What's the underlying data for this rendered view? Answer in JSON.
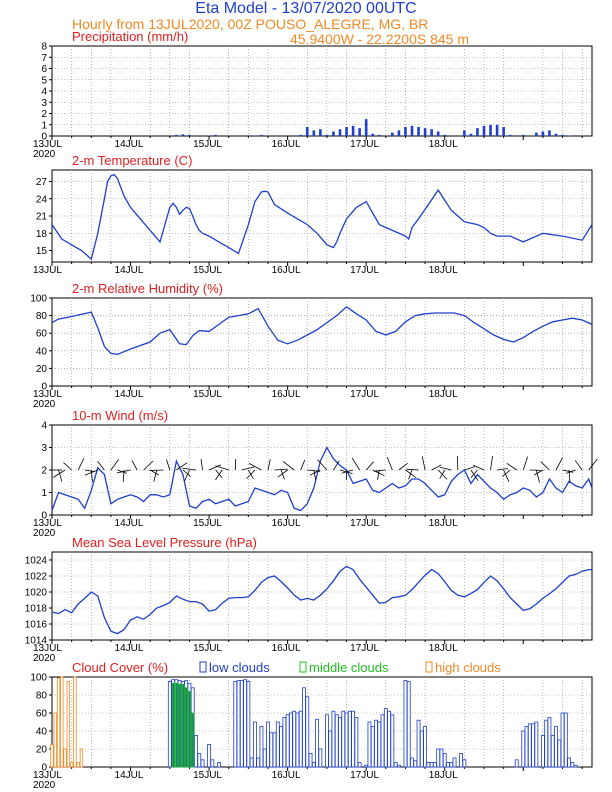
{
  "header": {
    "title": "Eta Model - 13/07/2020 00UTC",
    "subtitle": "Hourly from 13JUL2020, 00Z  POUSO_ALEGRE, MG, BR",
    "coords": "45.9400W - 22.2200S     845  m"
  },
  "colors": {
    "blue": "#1f3fcc",
    "red": "#e02020",
    "orange": "#f08a24",
    "green": "#20c020",
    "teal": "#1f7a7a"
  },
  "chart_data": [
    {
      "type": "bar",
      "title": "Precipitation (mm/h)",
      "ylim": [
        0,
        8
      ],
      "yticks": [
        0,
        1,
        2,
        3,
        4,
        5,
        6,
        7,
        8
      ],
      "xticks": [
        "13JUL",
        "14JUL",
        "15JUL",
        "16JUL",
        "17JUL",
        "18JUL"
      ],
      "year_label": "2020",
      "x_hours": [
        38,
        40,
        42,
        48,
        50,
        62,
        64,
        76,
        78,
        80,
        82,
        84,
        86,
        88,
        90,
        92,
        94,
        96,
        98,
        100,
        104,
        106,
        108,
        110,
        112,
        114,
        116,
        118,
        120,
        126,
        128,
        130,
        132,
        134,
        136,
        138,
        140,
        144,
        148,
        150,
        152,
        154,
        156,
        158
      ],
      "values": [
        0.1,
        0.15,
        0.1,
        0.05,
        0.1,
        0.05,
        0.1,
        0.1,
        0.8,
        0.5,
        0.6,
        0.1,
        0.4,
        0.6,
        0.8,
        0.9,
        0.7,
        1.5,
        0.2,
        0.1,
        0.3,
        0.5,
        0.8,
        0.9,
        0.8,
        0.7,
        0.6,
        0.4,
        0.1,
        0.5,
        0.2,
        0.7,
        0.9,
        1.0,
        1.0,
        0.8,
        0.1,
        0.1,
        0.3,
        0.4,
        0.5,
        0.2,
        0.1,
        0.05
      ]
    },
    {
      "type": "line",
      "title": "2-m Temperature (C)",
      "ylim": [
        13,
        29
      ],
      "yticks": [
        15,
        18,
        21,
        24,
        27
      ],
      "xticks": [
        "13JUL",
        "14JUL",
        "15JUL",
        "16JUL",
        "17JUL",
        "18JUL"
      ],
      "x_hours": [
        0,
        3,
        6,
        9,
        12,
        14,
        16,
        17,
        18,
        19,
        20,
        22,
        24,
        27,
        30,
        33,
        36,
        37,
        38,
        39,
        40,
        41,
        42,
        43,
        44,
        45,
        46,
        48,
        51,
        54,
        57,
        60,
        62,
        64,
        65,
        66,
        68,
        72,
        75,
        78,
        81,
        84,
        86,
        87,
        88,
        90,
        93,
        96,
        100,
        104,
        108,
        109,
        110,
        112,
        115,
        118,
        122,
        126,
        130,
        132,
        133,
        134,
        136,
        140,
        144,
        150,
        156,
        162,
        165
      ],
      "values": [
        19.5,
        17,
        16,
        15,
        13.5,
        18,
        24,
        27,
        28,
        28.2,
        27.5,
        24.5,
        22.5,
        20.5,
        18.5,
        16.5,
        22.5,
        23.2,
        22.5,
        21.3,
        22.0,
        22.5,
        22.3,
        21.0,
        19.5,
        18.5,
        18.0,
        17.5,
        16.5,
        15.5,
        14.5,
        19.5,
        23.5,
        25.2,
        25.3,
        25.2,
        23.0,
        21.5,
        20.5,
        19.5,
        18.0,
        16.0,
        15.5,
        16.5,
        18.0,
        20.5,
        22.5,
        23.5,
        19.5,
        18.5,
        17.5,
        17.0,
        19.0,
        20.5,
        23.0,
        25.5,
        22.0,
        20.0,
        19.5,
        19.0,
        18.5,
        18.0,
        17.5,
        17.5,
        16.5,
        18,
        17.5,
        16.8,
        19.5
      ]
    },
    {
      "type": "line",
      "title": "2-m Relative Humidity (%)",
      "ylim": [
        0,
        100
      ],
      "yticks": [
        0,
        20,
        40,
        60,
        80,
        100
      ],
      "xticks": [
        "13JUL",
        "14JUL",
        "15JUL",
        "16JUL",
        "17JUL",
        "18JUL"
      ],
      "year_label": "2020",
      "x_hours": [
        0,
        2,
        6,
        12,
        14,
        16,
        18,
        20,
        24,
        30,
        33,
        36,
        39,
        41,
        43,
        45,
        48,
        51,
        54,
        57,
        60,
        63,
        66,
        69,
        72,
        75,
        78,
        81,
        84,
        87,
        90,
        93,
        96,
        99,
        102,
        105,
        108,
        111,
        114,
        117,
        120,
        123,
        126,
        129,
        132,
        135,
        138,
        141,
        144,
        147,
        150,
        153,
        156,
        159,
        162,
        165
      ],
      "values": [
        72,
        76,
        79,
        84,
        66,
        45,
        37,
        36,
        42,
        50,
        60,
        64,
        48,
        47,
        57,
        63,
        62,
        70,
        78,
        80,
        82,
        88,
        68,
        52,
        48,
        52,
        58,
        64,
        72,
        80,
        90,
        82,
        75,
        62,
        58,
        62,
        73,
        80,
        82,
        83,
        83,
        83,
        80,
        72,
        65,
        58,
        53,
        50,
        55,
        62,
        68,
        73,
        75,
        77,
        75,
        70
      ]
    },
    {
      "type": "line",
      "title": "10-m Wind (m/s)",
      "ylim": [
        0,
        4
      ],
      "yticks": [
        0,
        1,
        2,
        3,
        4
      ],
      "xticks": [
        "13JUL",
        "14JUL",
        "15JUL",
        "16JUL",
        "17JUL",
        "18JUL"
      ],
      "year_label": "2020",
      "series_note": "wind barbs drawn along the 2 m/s line",
      "x_hours": [
        0,
        2,
        4,
        6,
        8,
        10,
        12,
        14,
        16,
        18,
        20,
        22,
        24,
        26,
        28,
        30,
        32,
        34,
        36,
        38,
        40,
        42,
        44,
        46,
        48,
        50,
        52,
        54,
        56,
        58,
        60,
        62,
        64,
        66,
        68,
        70,
        72,
        74,
        76,
        78,
        80,
        82,
        84,
        86,
        88,
        90,
        92,
        94,
        96,
        98,
        100,
        102,
        104,
        106,
        108,
        110,
        112,
        114,
        116,
        118,
        120,
        122,
        124,
        126,
        128,
        130,
        132,
        134,
        136,
        138,
        140,
        142,
        144,
        146,
        148,
        150,
        152,
        154,
        156,
        158,
        160,
        162,
        164,
        165
      ],
      "values": [
        0.2,
        1.0,
        0.9,
        0.8,
        0.7,
        0.3,
        1.1,
        2.1,
        1.8,
        0.5,
        0.7,
        0.8,
        0.9,
        0.8,
        0.6,
        0.9,
        0.9,
        0.8,
        0.9,
        2.4,
        1.8,
        0.4,
        0.3,
        0.6,
        0.7,
        0.5,
        0.6,
        0.7,
        0.4,
        0.5,
        0.6,
        1.2,
        1.1,
        1.0,
        0.9,
        1.1,
        1.0,
        0.3,
        0.2,
        0.5,
        1.2,
        2.4,
        3.0,
        2.5,
        2.2,
        2.0,
        1.4,
        1.5,
        1.6,
        1.1,
        1.0,
        1.2,
        1.4,
        1.2,
        1.3,
        1.6,
        1.6,
        1.4,
        1.1,
        0.8,
        0.9,
        1.5,
        1.8,
        2.0,
        1.4,
        1.8,
        1.5,
        1.2,
        1.0,
        0.7,
        0.9,
        1.0,
        1.2,
        1.1,
        0.8,
        1.0,
        1.6,
        1.2,
        1.0,
        1.5,
        1.3,
        1.2,
        1.6,
        1.2
      ]
    },
    {
      "type": "line",
      "title": "Mean Sea Level Pressure (hPa)",
      "ylim": [
        1014,
        1025
      ],
      "yticks": [
        1014,
        1016,
        1018,
        1020,
        1022,
        1024
      ],
      "xticks": [
        "13JUL",
        "14JUL",
        "15JUL",
        "16JUL",
        "17JUL",
        "18JUL"
      ],
      "year_label": "2020",
      "x_hours": [
        0,
        2,
        4,
        6,
        8,
        10,
        12,
        14,
        16,
        18,
        20,
        22,
        24,
        26,
        28,
        30,
        32,
        34,
        36,
        38,
        40,
        42,
        44,
        46,
        48,
        50,
        52,
        54,
        56,
        58,
        60,
        62,
        64,
        66,
        68,
        70,
        72,
        74,
        76,
        78,
        80,
        82,
        84,
        86,
        88,
        90,
        92,
        94,
        96,
        98,
        100,
        102,
        104,
        106,
        108,
        110,
        112,
        114,
        116,
        118,
        120,
        122,
        124,
        126,
        128,
        130,
        132,
        134,
        136,
        138,
        140,
        142,
        144,
        146,
        148,
        150,
        152,
        154,
        156,
        158,
        160,
        162,
        164,
        165
      ],
      "values": [
        1017.5,
        1017.3,
        1017.8,
        1017.4,
        1018.5,
        1019.2,
        1020.0,
        1019.5,
        1016.8,
        1015.1,
        1014.8,
        1015.3,
        1016.5,
        1016.9,
        1016.6,
        1017.2,
        1018.0,
        1018.3,
        1018.7,
        1019.5,
        1019.1,
        1018.8,
        1018.8,
        1018.5,
        1017.6,
        1017.8,
        1018.6,
        1019.2,
        1019.3,
        1019.3,
        1019.4,
        1020.2,
        1021.2,
        1021.8,
        1022.0,
        1021.3,
        1020.5,
        1019.6,
        1019.0,
        1019.2,
        1019.0,
        1019.6,
        1020.4,
        1021.4,
        1022.6,
        1023.2,
        1022.8,
        1021.6,
        1020.6,
        1019.6,
        1018.6,
        1018.7,
        1019.3,
        1019.4,
        1019.6,
        1020.3,
        1021.2,
        1022.1,
        1022.8,
        1022.3,
        1021.3,
        1020.2,
        1019.6,
        1019.4,
        1019.8,
        1020.3,
        1021.2,
        1022.0,
        1021.4,
        1020.4,
        1019.3,
        1018.5,
        1017.7,
        1017.9,
        1018.5,
        1019.2,
        1019.8,
        1020.4,
        1021.2,
        1022.0,
        1022.2,
        1022.6,
        1022.8,
        1022.8
      ]
    },
    {
      "type": "bar",
      "title": "Cloud Cover (%)",
      "ylim": [
        0,
        100
      ],
      "yticks": [
        0,
        20,
        40,
        60,
        80,
        100
      ],
      "xticks": [
        "13JUL",
        "14JUL",
        "15JUL",
        "16JUL",
        "17JUL",
        "18JUL"
      ],
      "year_label": "2020",
      "legend": [
        {
          "label": "low clouds",
          "color": "#1f3fcc"
        },
        {
          "label": "middle clouds",
          "color": "#20c020"
        },
        {
          "label": "high clouds",
          "color": "#f08a24"
        }
      ],
      "series": [
        {
          "name": "low clouds",
          "x_hours": [
            36,
            37,
            38,
            39,
            40,
            41,
            42,
            43,
            44,
            45,
            46,
            48,
            49,
            51,
            56,
            57,
            58,
            59,
            60,
            61,
            62,
            63,
            64,
            65,
            66,
            67,
            68,
            69,
            70,
            71,
            72,
            73,
            74,
            75,
            76,
            77,
            78,
            79,
            80,
            81,
            82,
            84,
            85,
            86,
            87,
            88,
            89,
            90,
            91,
            92,
            93,
            94,
            96,
            97,
            98,
            99,
            100,
            101,
            102,
            103,
            104,
            105,
            106,
            108,
            109,
            110,
            111,
            112,
            113,
            114,
            115,
            116,
            117,
            118,
            119,
            120,
            121,
            122,
            123,
            125,
            126,
            142,
            144,
            145,
            146,
            147,
            148,
            150,
            151,
            152,
            153,
            154,
            155,
            156,
            157,
            158,
            159,
            160
          ],
          "values": [
            95,
            97,
            97,
            96,
            95,
            96,
            93,
            88,
            35,
            15,
            8,
            25,
            8,
            5,
            95,
            96,
            96,
            97,
            95,
            10,
            50,
            10,
            45,
            20,
            50,
            38,
            38,
            50,
            45,
            55,
            58,
            60,
            62,
            60,
            62,
            88,
            78,
            15,
            5,
            53,
            20,
            58,
            40,
            62,
            58,
            55,
            62,
            60,
            62,
            62,
            55,
            5,
            2,
            50,
            45,
            52,
            50,
            58,
            65,
            62,
            58,
            5,
            2,
            96,
            95,
            10,
            7,
            52,
            40,
            45,
            5,
            5,
            5,
            20,
            20,
            15,
            5,
            5,
            10,
            15,
            8,
            8,
            40,
            45,
            48,
            48,
            50,
            35,
            52,
            55,
            35,
            45,
            30,
            60,
            60,
            10,
            5,
            2
          ]
        },
        {
          "name": "middle clouds",
          "x_hours": [
            37,
            38,
            39,
            40,
            41,
            42,
            43
          ],
          "values": [
            93,
            93,
            92,
            92,
            88,
            84,
            60
          ]
        },
        {
          "name": "high clouds",
          "x_hours": [
            0,
            1,
            2,
            3,
            4,
            5,
            6,
            7,
            8,
            9
          ],
          "values": [
            25,
            60,
            99,
            100,
            20,
            95,
            5,
            100,
            5,
            20
          ]
        }
      ]
    }
  ]
}
